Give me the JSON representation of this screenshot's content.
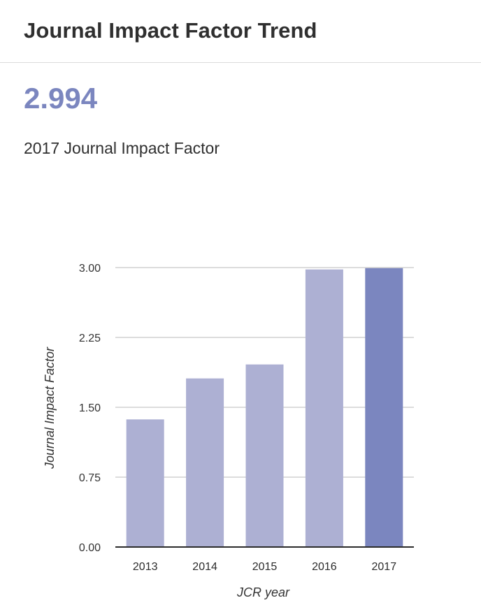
{
  "header": {
    "title": "Journal Impact Factor Trend"
  },
  "metric": {
    "value": "2.994",
    "label": "2017 Journal Impact Factor"
  },
  "colors": {
    "accent": "#7b86bf",
    "bar": "#adb0d3",
    "bar_highlight": "#7b86bf",
    "grid": "#c8c8c8",
    "axis": "#2b2b2b"
  },
  "chart_data": {
    "type": "bar",
    "categories": [
      "2013",
      "2014",
      "2015",
      "2016",
      "2017"
    ],
    "values": [
      1.37,
      1.81,
      1.96,
      2.98,
      2.994
    ],
    "highlight_index": 4,
    "xlabel": "JCR year",
    "ylabel": "Journal Impact Factor",
    "ylim": [
      0,
      3.0
    ],
    "yticks": [
      "0.00",
      "0.75",
      "1.50",
      "2.25",
      "3.00"
    ],
    "grid": true,
    "legend": "none"
  }
}
